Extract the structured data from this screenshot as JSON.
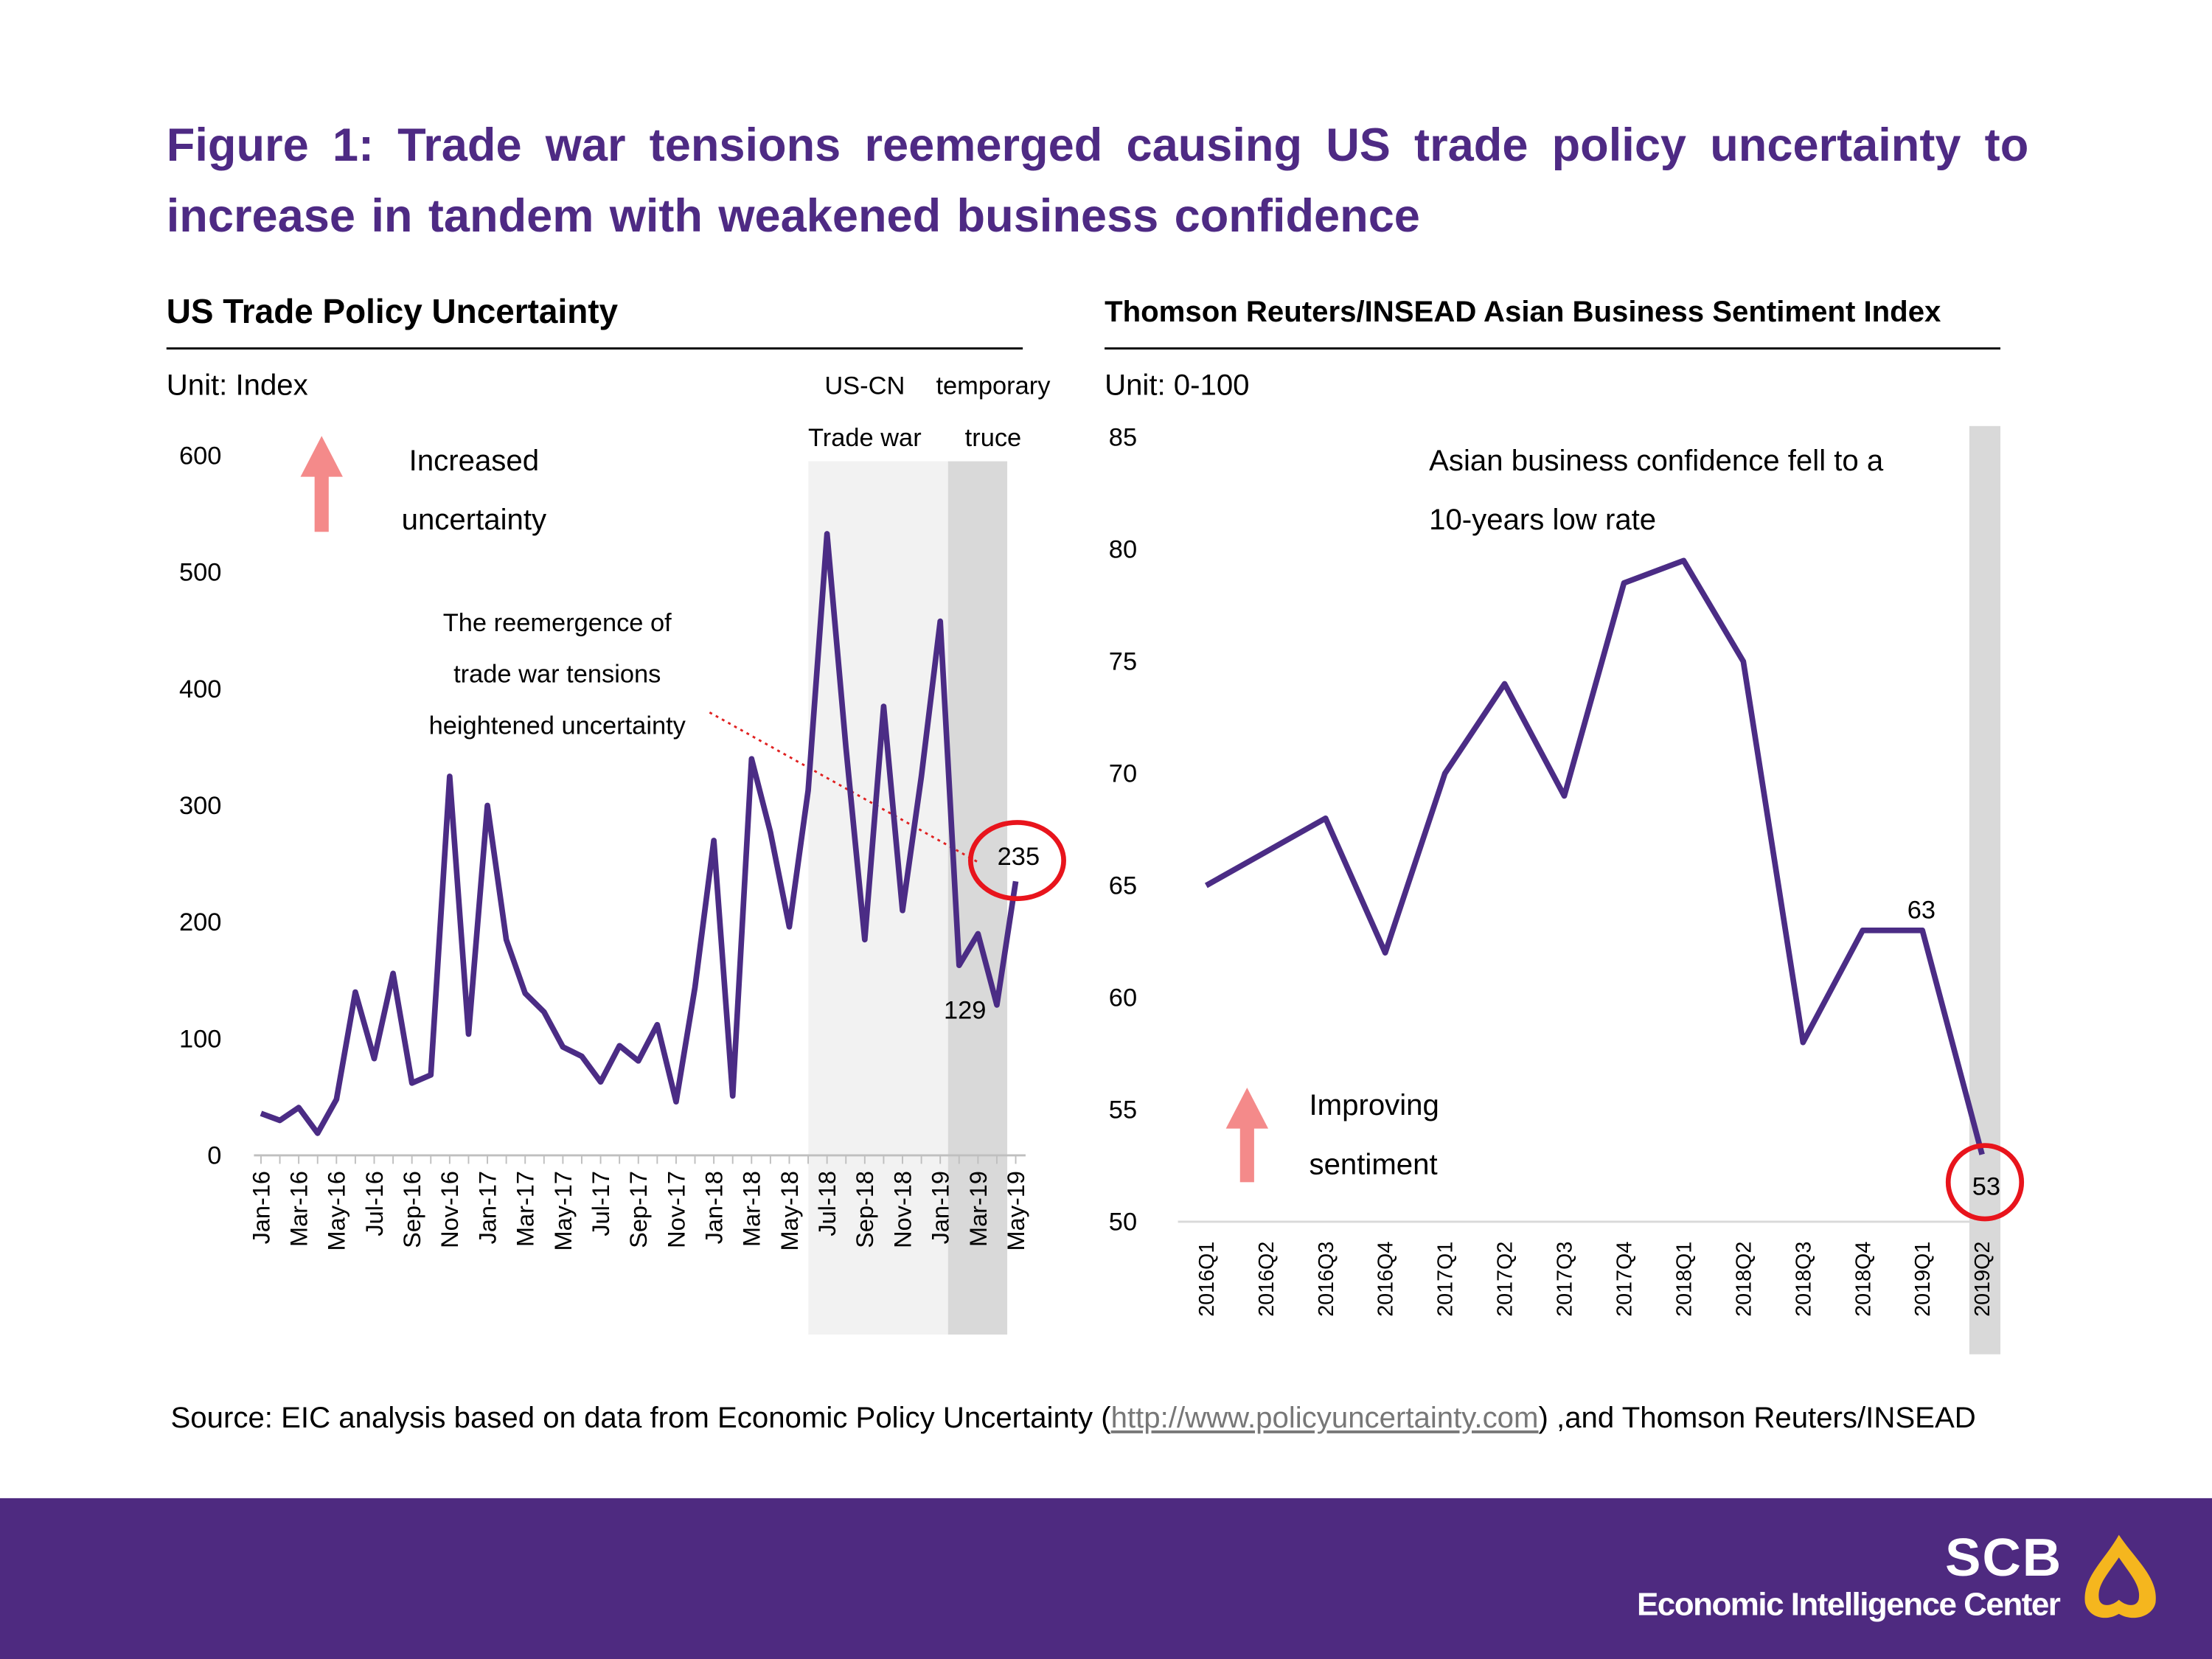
{
  "header": {
    "title": "Figure 1: Trade war tensions reemerged causing US trade policy uncertainty to increase in tandem with weakened business confidence"
  },
  "chart_data": [
    {
      "type": "line",
      "title": "US Trade Policy Uncertainty",
      "unit": "Unit: Index",
      "categories": [
        "Jan-16",
        null,
        "Mar-16",
        null,
        "May-16",
        null,
        "Jul-16",
        null,
        "Sep-16",
        null,
        "Nov-16",
        null,
        "Jan-17",
        null,
        "Mar-17",
        null,
        "May-17",
        null,
        "Jul-17",
        null,
        "Sep-17",
        null,
        "Nov-17",
        null,
        "Jan-18",
        null,
        "Mar-18",
        null,
        "May-18",
        null,
        "Jul-18",
        null,
        "Sep-18",
        null,
        "Nov-18",
        null,
        "Jan-19",
        null,
        "Mar-19",
        null,
        "May-19"
      ],
      "values": [
        36,
        30,
        41,
        19,
        48,
        140,
        83,
        156,
        62,
        69,
        325,
        104,
        300,
        185,
        139,
        123,
        93,
        85,
        63,
        94,
        81,
        112,
        46,
        144,
        270,
        51,
        340,
        277,
        196,
        313,
        533,
        350,
        185,
        385,
        210,
        325,
        458,
        163,
        190,
        129,
        235
      ],
      "color": "#4b2c85",
      "ylim": [
        0,
        600
      ],
      "yticks": [
        0,
        100,
        200,
        300,
        400,
        500,
        600
      ],
      "grid": false,
      "annotations": {
        "arrow_note": [
          "Increased",
          "uncertainty"
        ],
        "callout": [
          "The reemergence of",
          "trade war tensions",
          "heightened uncertainty"
        ],
        "band_war": [
          "US-CN",
          "Trade war"
        ],
        "band_truce": [
          "temporary",
          "truce"
        ]
      }
    },
    {
      "type": "line",
      "title": "Thomson Reuters/INSEAD Asian Business Sentiment Index",
      "unit": "Unit: 0-100",
      "categories": [
        "2016Q1",
        "2016Q2",
        "2016Q3",
        "2016Q4",
        "2017Q1",
        "2017Q2",
        "2017Q3",
        "2017Q4",
        "2018Q1",
        "2018Q2",
        "2018Q3",
        "2018Q4",
        "2019Q1",
        "2019Q2"
      ],
      "values": [
        65,
        66.5,
        68,
        62,
        70,
        74,
        69,
        78.5,
        79.5,
        75,
        58,
        63,
        63,
        53
      ],
      "color": "#4b2c85",
      "ylim": [
        50,
        85
      ],
      "yticks": [
        50,
        55,
        60,
        65,
        70,
        75,
        80,
        85
      ],
      "grid": false,
      "annotations": {
        "callout": [
          "Asian business confidence fell to a",
          "10-years low rate"
        ],
        "arrow_note": [
          "Improving",
          "sentiment"
        ]
      }
    }
  ],
  "source": {
    "prefix": "Source: EIC analysis based on data from Economic Policy Uncertainty (",
    "link": "http://www.policyuncertainty.com",
    "suffix": ") ,and Thomson Reuters/INSEAD"
  },
  "footer": {
    "brand": "SCB",
    "name": "Economic Intelligence Center"
  }
}
